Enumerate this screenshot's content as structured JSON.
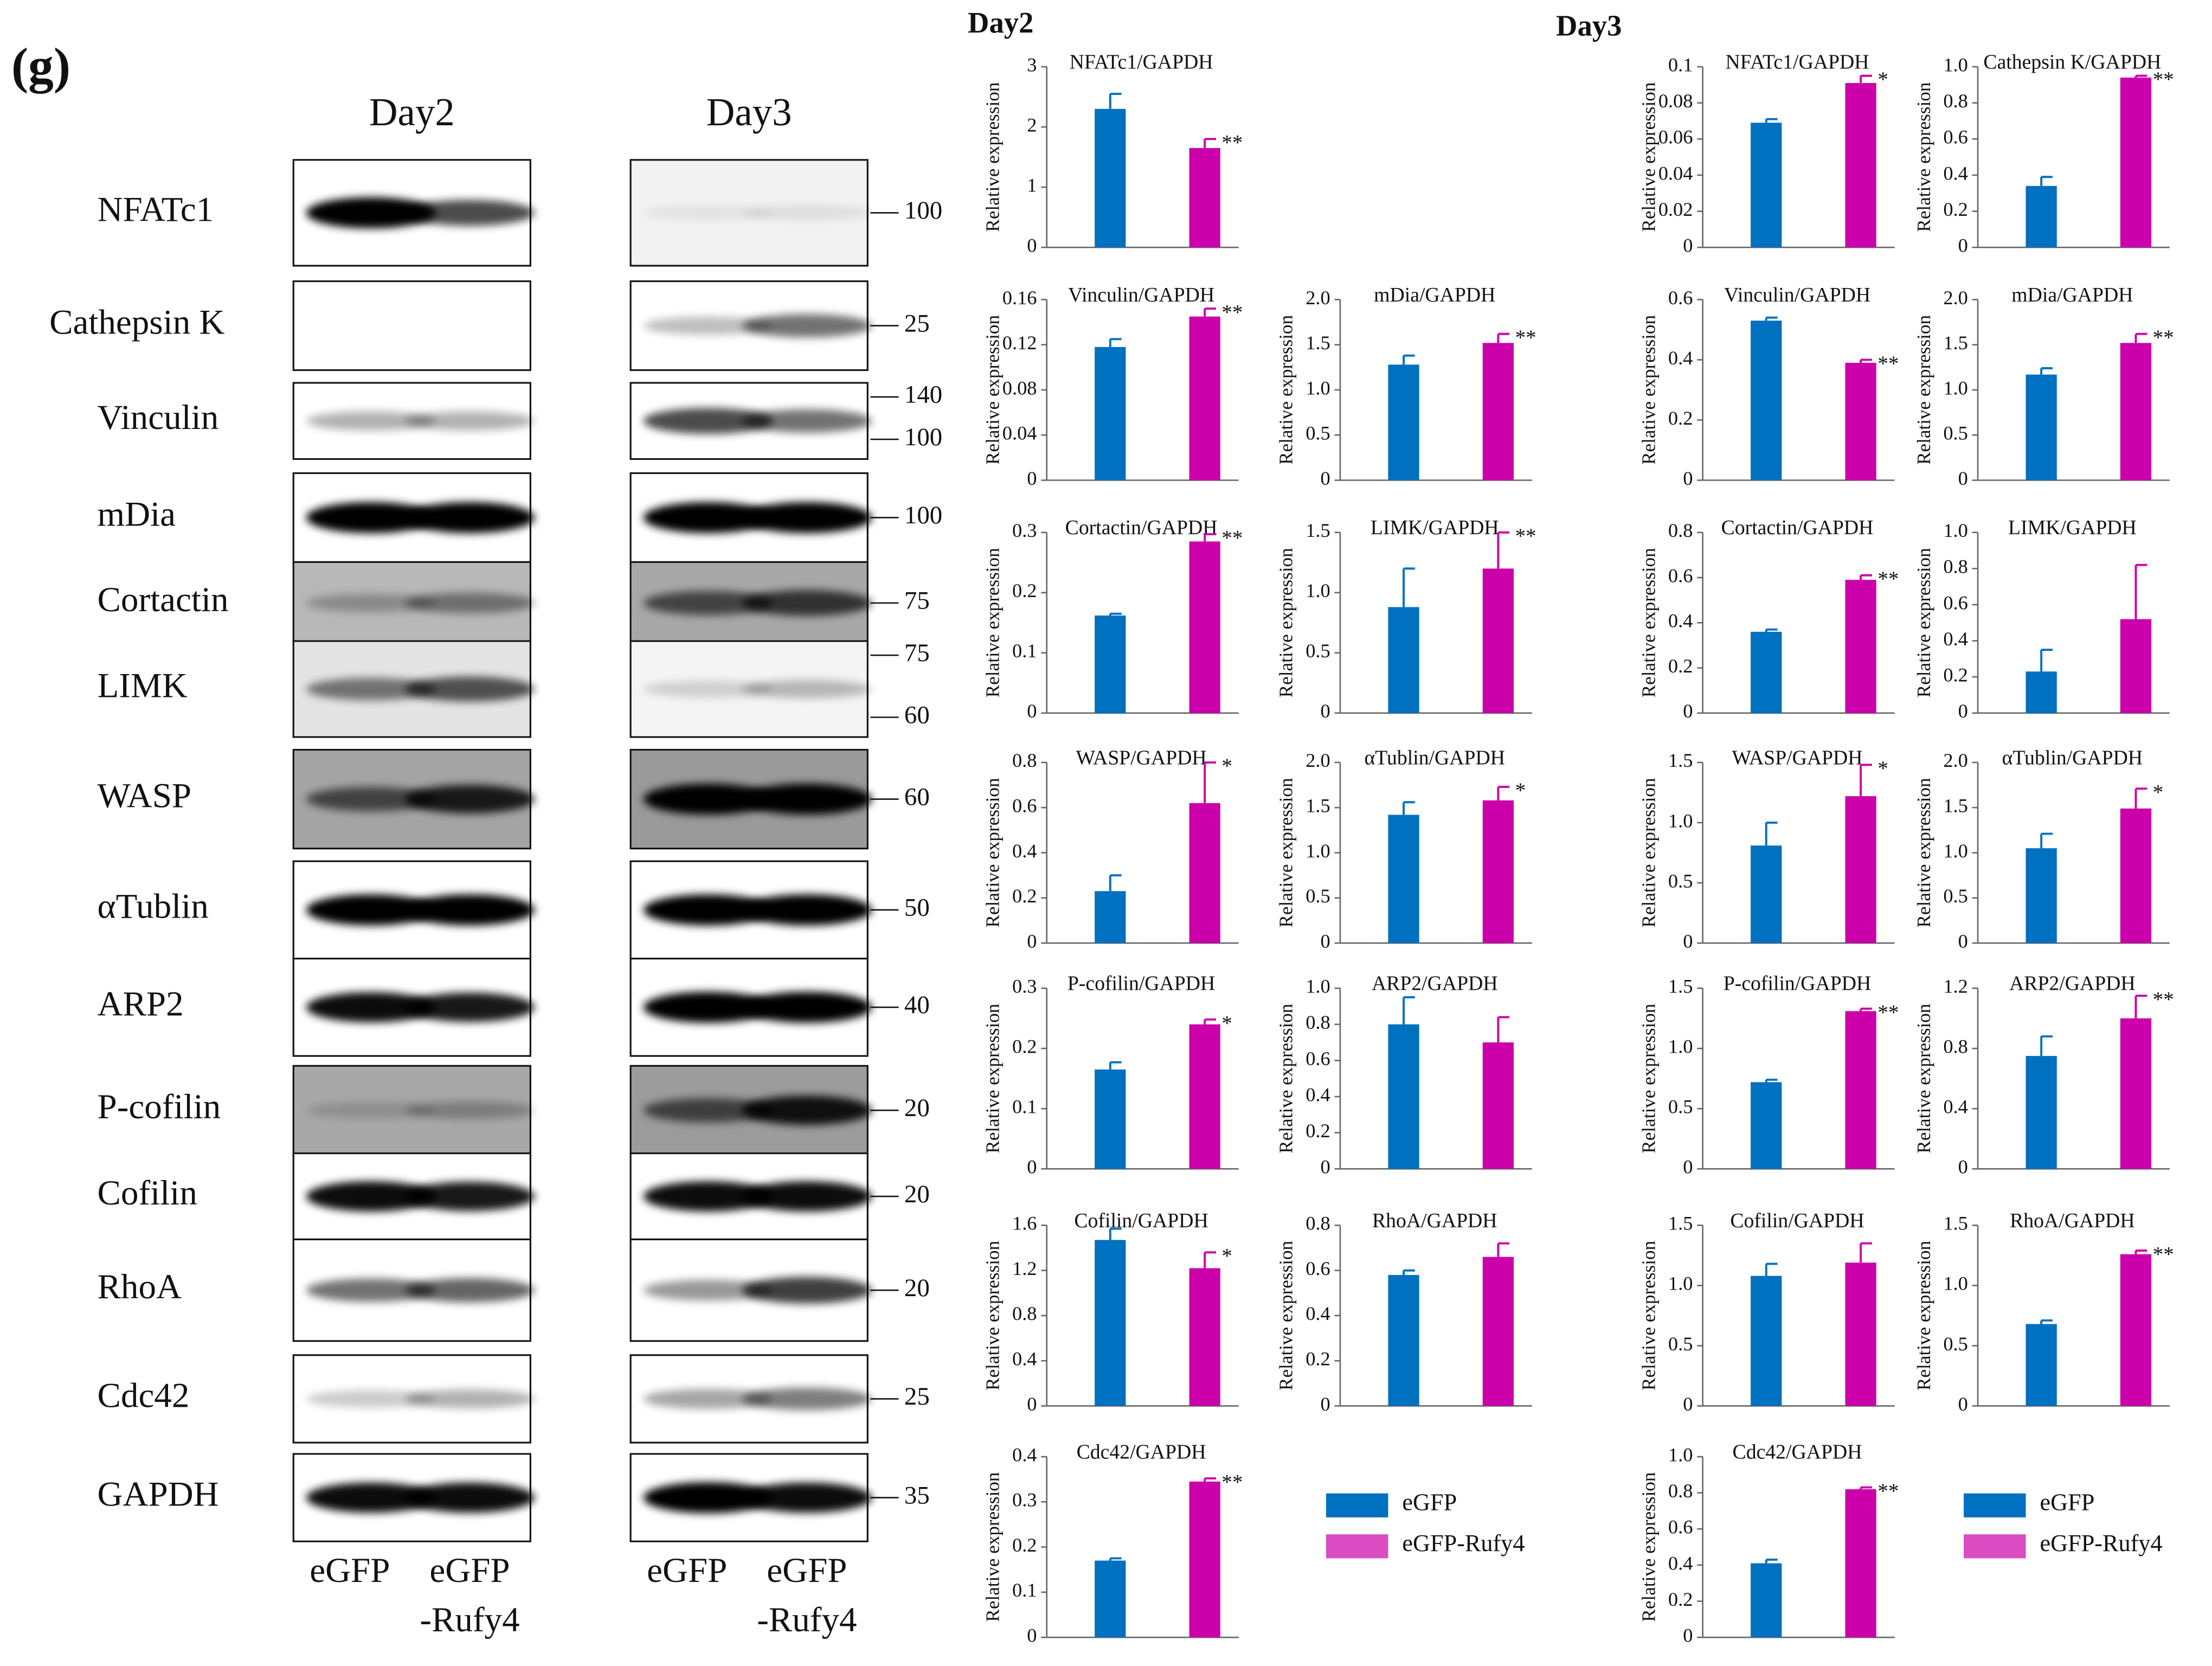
{
  "panel_label": "(g)",
  "blot": {
    "day_labels": [
      "Day2",
      "Day3"
    ],
    "proteins": [
      "NFATc1",
      "Cathepsin K",
      "Vinculin",
      "mDia",
      "Cortactin",
      "LIMK",
      "WASP",
      "αTublin",
      "ARP2",
      "P-cofilin",
      "Cofilin",
      "RhoA",
      "Cdc42",
      "GAPDH"
    ],
    "markers": [
      [
        100
      ],
      [
        25
      ],
      [
        140,
        100
      ],
      [
        100
      ],
      [
        75
      ],
      [
        75,
        60
      ],
      [
        60
      ],
      [
        50
      ],
      [
        40
      ],
      [
        20
      ],
      [
        20
      ],
      [
        20
      ],
      [
        25
      ],
      [
        35
      ]
    ],
    "lanes": [
      [
        "eGFP"
      ],
      [
        "eGFP",
        "-Rufy4"
      ]
    ]
  },
  "chart_group_titles": [
    "Day2",
    "Day3"
  ],
  "chart_data": [
    {
      "type": "bar",
      "title": "NFATc1/GAPDH",
      "y_label": "Relative expression",
      "ylim": [
        0,
        3
      ],
      "yticks": [
        0,
        1,
        2,
        3
      ],
      "series": [
        {
          "name": "eGFP",
          "color": "#0070c0",
          "values": [
            2.3
          ],
          "errors": [
            0.25
          ]
        },
        {
          "name": "eGFP-Rufy4",
          "color": "#cc00aa",
          "values": [
            1.65
          ],
          "errors": [
            0.15
          ],
          "annotations": [
            "**"
          ]
        }
      ]
    },
    {
      "type": "bar",
      "title": "Vinculin/GAPDH",
      "y_label": "Relative expression",
      "ylim": [
        0,
        0.16
      ],
      "yticks": [
        0,
        0.04,
        0.08,
        0.12,
        0.16
      ],
      "series": [
        {
          "name": "eGFP",
          "color": "#0070c0",
          "values": [
            0.118
          ],
          "errors": [
            0.007
          ]
        },
        {
          "name": "eGFP-Rufy4",
          "color": "#cc00aa",
          "values": [
            0.145
          ],
          "errors": [
            0.007
          ],
          "annotations": [
            "**"
          ]
        }
      ]
    },
    {
      "type": "bar",
      "title": "mDia/GAPDH",
      "y_label": "Relative expression",
      "ylim": [
        0,
        2
      ],
      "yticks": [
        0,
        0.5,
        {
          "value": 1,
          "label": "1.0"
        },
        1.5,
        {
          "value": 2,
          "label": "2.0"
        }
      ],
      "series": [
        {
          "name": "eGFP",
          "color": "#0070c0",
          "values": [
            1.28
          ],
          "errors": [
            0.1
          ]
        },
        {
          "name": "eGFP-Rufy4",
          "color": "#cc00aa",
          "values": [
            1.52
          ],
          "errors": [
            0.1
          ],
          "annotations": [
            "**"
          ]
        }
      ]
    },
    {
      "type": "bar",
      "title": "Cortactin/GAPDH",
      "y_label": "Relative expression",
      "ylim": [
        0,
        0.3
      ],
      "yticks": [
        0,
        0.1,
        0.2,
        0.3
      ],
      "series": [
        {
          "name": "eGFP",
          "color": "#0070c0",
          "values": [
            0.162
          ],
          "errors": [
            0.003
          ]
        },
        {
          "name": "eGFP-Rufy4",
          "color": "#cc00aa",
          "values": [
            0.285
          ],
          "errors": [
            0.012
          ],
          "annotations": [
            "**"
          ]
        }
      ]
    },
    {
      "type": "bar",
      "title": "LIMK/GAPDH",
      "y_label": "Relative expression",
      "ylim": [
        0,
        1.5
      ],
      "yticks": [
        0,
        0.5,
        {
          "value": 1,
          "label": "1.0"
        },
        1.5
      ],
      "series": [
        {
          "name": "eGFP",
          "color": "#0070c0",
          "values": [
            0.88
          ],
          "errors": [
            0.32
          ]
        },
        {
          "name": "eGFP-Rufy4",
          "color": "#cc00aa",
          "values": [
            1.2
          ],
          "errors": [
            0.3
          ],
          "annotations": [
            "**"
          ]
        }
      ]
    },
    {
      "type": "bar",
      "title": "WASP/GAPDH",
      "y_label": "Relative expression",
      "ylim": [
        0,
        0.8
      ],
      "yticks": [
        0,
        0.2,
        0.4,
        0.6,
        0.8
      ],
      "series": [
        {
          "name": "eGFP",
          "color": "#0070c0",
          "values": [
            0.23
          ],
          "errors": [
            0.07
          ]
        },
        {
          "name": "eGFP-Rufy4",
          "color": "#cc00aa",
          "values": [
            0.62
          ],
          "errors": [
            0.18
          ],
          "annotations": [
            "*"
          ]
        }
      ]
    },
    {
      "type": "bar",
      "title": "αTublin/GAPDH",
      "y_label": "Relative expression",
      "ylim": [
        0,
        2
      ],
      "yticks": [
        0,
        0.5,
        {
          "value": 1,
          "label": "1.0"
        },
        1.5,
        {
          "value": 2,
          "label": "2.0"
        }
      ],
      "series": [
        {
          "name": "eGFP",
          "color": "#0070c0",
          "values": [
            1.42
          ],
          "errors": [
            0.14
          ]
        },
        {
          "name": "eGFP-Rufy4",
          "color": "#cc00aa",
          "values": [
            1.58
          ],
          "errors": [
            0.15
          ],
          "annotations": [
            "*"
          ]
        }
      ]
    },
    {
      "type": "bar",
      "title": "P-cofilin/GAPDH",
      "y_label": "Relative expression",
      "ylim": [
        0,
        0.3
      ],
      "yticks": [
        0,
        0.1,
        0.2,
        0.3
      ],
      "series": [
        {
          "name": "eGFP",
          "color": "#0070c0",
          "values": [
            0.165
          ],
          "errors": [
            0.012
          ]
        },
        {
          "name": "eGFP-Rufy4",
          "color": "#cc00aa",
          "values": [
            0.24
          ],
          "errors": [
            0.008
          ],
          "annotations": [
            "*"
          ]
        }
      ]
    },
    {
      "type": "bar",
      "title": "ARP2/GAPDH",
      "y_label": "Relative expression",
      "ylim": [
        0,
        1
      ],
      "yticks": [
        0,
        0.2,
        0.4,
        0.6,
        0.8,
        {
          "value": 1,
          "label": "1.0"
        }
      ],
      "series": [
        {
          "name": "eGFP",
          "color": "#0070c0",
          "values": [
            0.8
          ],
          "errors": [
            0.15
          ]
        },
        {
          "name": "eGFP-Rufy4",
          "color": "#cc00aa",
          "values": [
            0.7
          ],
          "errors": [
            0.14
          ]
        }
      ]
    },
    {
      "type": "bar",
      "title": "Cofilin/GAPDH",
      "y_label": "Relative expression",
      "ylim": [
        0,
        1.6
      ],
      "yticks": [
        0,
        0.4,
        0.8,
        1.2,
        1.6
      ],
      "series": [
        {
          "name": "eGFP",
          "color": "#0070c0",
          "values": [
            1.47
          ],
          "errors": [
            0.1
          ]
        },
        {
          "name": "eGFP-Rufy4",
          "color": "#cc00aa",
          "values": [
            1.22
          ],
          "errors": [
            0.14
          ],
          "annotations": [
            "*"
          ]
        }
      ]
    },
    {
      "type": "bar",
      "title": "RhoA/GAPDH",
      "y_label": "Relative expression",
      "ylim": [
        0,
        0.8
      ],
      "yticks": [
        0,
        0.2,
        0.4,
        0.6,
        0.8
      ],
      "series": [
        {
          "name": "eGFP",
          "color": "#0070c0",
          "values": [
            0.58
          ],
          "errors": [
            0.02
          ]
        },
        {
          "name": "eGFP-Rufy4",
          "color": "#cc00aa",
          "values": [
            0.66
          ],
          "errors": [
            0.06
          ]
        }
      ]
    },
    {
      "type": "bar",
      "title": "Cdc42/GAPDH",
      "y_label": "Relative expression",
      "ylim": [
        0,
        0.4
      ],
      "yticks": [
        0,
        0.1,
        0.2,
        0.3,
        0.4
      ],
      "series": [
        {
          "name": "eGFP",
          "color": "#0070c0",
          "values": [
            0.17
          ],
          "errors": [
            0.005
          ]
        },
        {
          "name": "eGFP-Rufy4",
          "color": "#cc00aa",
          "values": [
            0.345
          ],
          "errors": [
            0.007
          ],
          "annotations": [
            "**"
          ]
        }
      ]
    },
    {
      "type": "bar",
      "title": "NFATc1/GAPDH",
      "y_label": "Relative expression",
      "ylim": [
        0,
        0.1
      ],
      "yticks": [
        0,
        0.02,
        0.04,
        0.06,
        0.08,
        0.1
      ],
      "series": [
        {
          "name": "eGFP",
          "color": "#0070c0",
          "values": [
            0.069
          ],
          "errors": [
            0.002
          ]
        },
        {
          "name": "eGFP-Rufy4",
          "color": "#cc00aa",
          "values": [
            0.091
          ],
          "errors": [
            0.004
          ],
          "annotations": [
            "*"
          ]
        }
      ]
    },
    {
      "type": "bar",
      "title": "Cathepsin K/GAPDH",
      "y_label": "Relative expression",
      "ylim": [
        0,
        1
      ],
      "yticks": [
        0,
        0.2,
        0.4,
        0.6,
        0.8,
        {
          "value": 1,
          "label": "1.0"
        }
      ],
      "series": [
        {
          "name": "eGFP",
          "color": "#0070c0",
          "values": [
            0.34
          ],
          "errors": [
            0.05
          ]
        },
        {
          "name": "eGFP-Rufy4",
          "color": "#cc00aa",
          "values": [
            0.94
          ],
          "errors": [
            0.01
          ],
          "annotations": [
            "**"
          ]
        }
      ]
    },
    {
      "type": "bar",
      "title": "Vinculin/GAPDH",
      "y_label": "Relative expression",
      "ylim": [
        0,
        0.6
      ],
      "yticks": [
        0,
        0.2,
        0.4,
        0.6
      ],
      "series": [
        {
          "name": "eGFP",
          "color": "#0070c0",
          "values": [
            0.53
          ],
          "errors": [
            0.01
          ]
        },
        {
          "name": "eGFP-Rufy4",
          "color": "#cc00aa",
          "values": [
            0.39
          ],
          "errors": [
            0.01
          ],
          "annotations": [
            "**"
          ]
        }
      ]
    },
    {
      "type": "bar",
      "title": "mDia/GAPDH",
      "y_label": "Relative expression",
      "ylim": [
        0,
        2
      ],
      "yticks": [
        0,
        0.5,
        {
          "value": 1,
          "label": "1.0"
        },
        1.5,
        {
          "value": 2,
          "label": "2.0"
        }
      ],
      "series": [
        {
          "name": "eGFP",
          "color": "#0070c0",
          "values": [
            1.17
          ],
          "errors": [
            0.07
          ]
        },
        {
          "name": "eGFP-Rufy4",
          "color": "#cc00aa",
          "values": [
            1.52
          ],
          "errors": [
            0.1
          ],
          "annotations": [
            "**"
          ]
        }
      ]
    },
    {
      "type": "bar",
      "title": "Cortactin/GAPDH",
      "y_label": "Relative expression",
      "ylim": [
        0,
        0.8
      ],
      "yticks": [
        0,
        0.2,
        0.4,
        0.6,
        0.8
      ],
      "series": [
        {
          "name": "eGFP",
          "color": "#0070c0",
          "values": [
            0.36
          ],
          "errors": [
            0.01
          ]
        },
        {
          "name": "eGFP-Rufy4",
          "color": "#cc00aa",
          "values": [
            0.59
          ],
          "errors": [
            0.02
          ],
          "annotations": [
            "**"
          ]
        }
      ]
    },
    {
      "type": "bar",
      "title": "LIMK/GAPDH",
      "y_label": "Relative expression",
      "ylim": [
        0,
        1
      ],
      "yticks": [
        0,
        0.2,
        0.4,
        0.6,
        0.8,
        {
          "value": 1,
          "label": "1.0"
        }
      ],
      "series": [
        {
          "name": "eGFP",
          "color": "#0070c0",
          "values": [
            0.23
          ],
          "errors": [
            0.12
          ]
        },
        {
          "name": "eGFP-Rufy4",
          "color": "#cc00aa",
          "values": [
            0.52
          ],
          "errors": [
            0.3
          ]
        }
      ]
    },
    {
      "type": "bar",
      "title": "WASP/GAPDH",
      "y_label": "Relative expression",
      "ylim": [
        0,
        1.5
      ],
      "yticks": [
        0,
        0.5,
        {
          "value": 1,
          "label": "1.0"
        },
        1.5
      ],
      "series": [
        {
          "name": "eGFP",
          "color": "#0070c0",
          "values": [
            0.81
          ],
          "errors": [
            0.19
          ]
        },
        {
          "name": "eGFP-Rufy4",
          "color": "#cc00aa",
          "values": [
            1.22
          ],
          "errors": [
            0.26
          ],
          "annotations": [
            "*"
          ]
        }
      ]
    },
    {
      "type": "bar",
      "title": "αTublin/GAPDH",
      "y_label": "Relative expression",
      "ylim": [
        0,
        2
      ],
      "yticks": [
        0,
        0.5,
        {
          "value": 1,
          "label": "1.0"
        },
        1.5,
        {
          "value": 2,
          "label": "2.0"
        }
      ],
      "series": [
        {
          "name": "eGFP",
          "color": "#0070c0",
          "values": [
            1.05
          ],
          "errors": [
            0.16
          ]
        },
        {
          "name": "eGFP-Rufy4",
          "color": "#cc00aa",
          "values": [
            1.49
          ],
          "errors": [
            0.22
          ],
          "annotations": [
            "*"
          ]
        }
      ]
    },
    {
      "type": "bar",
      "title": "P-cofilin/GAPDH",
      "y_label": "Relative expression",
      "ylim": [
        0,
        1.5
      ],
      "yticks": [
        0,
        0.5,
        {
          "value": 1,
          "label": "1.0"
        },
        1.5
      ],
      "series": [
        {
          "name": "eGFP",
          "color": "#0070c0",
          "values": [
            0.72
          ],
          "errors": [
            0.02
          ]
        },
        {
          "name": "eGFP-Rufy4",
          "color": "#cc00aa",
          "values": [
            1.31
          ],
          "errors": [
            0.02
          ],
          "annotations": [
            "**"
          ]
        }
      ]
    },
    {
      "type": "bar",
      "title": "ARP2/GAPDH",
      "y_label": "Relative expression",
      "ylim": [
        0,
        1.2
      ],
      "yticks": [
        0,
        0.4,
        0.8,
        1.2
      ],
      "series": [
        {
          "name": "eGFP",
          "color": "#0070c0",
          "values": [
            0.75
          ],
          "errors": [
            0.13
          ]
        },
        {
          "name": "eGFP-Rufy4",
          "color": "#cc00aa",
          "values": [
            1.0
          ],
          "errors": [
            0.15
          ],
          "annotations": [
            "**"
          ]
        }
      ]
    },
    {
      "type": "bar",
      "title": "Cofilin/GAPDH",
      "y_label": "Relative expression",
      "ylim": [
        0,
        1.5
      ],
      "yticks": [
        0,
        0.5,
        {
          "value": 1,
          "label": "1.0"
        },
        1.5
      ],
      "series": [
        {
          "name": "eGFP",
          "color": "#0070c0",
          "values": [
            1.08
          ],
          "errors": [
            0.1
          ]
        },
        {
          "name": "eGFP-Rufy4",
          "color": "#cc00aa",
          "values": [
            1.19
          ],
          "errors": [
            0.16
          ]
        }
      ]
    },
    {
      "type": "bar",
      "title": "RhoA/GAPDH",
      "y_label": "Relative expression",
      "ylim": [
        0,
        1.5
      ],
      "yticks": [
        0,
        0.5,
        {
          "value": 1,
          "label": "1.0"
        },
        1.5
      ],
      "series": [
        {
          "name": "eGFP",
          "color": "#0070c0",
          "values": [
            0.68
          ],
          "errors": [
            0.03
          ]
        },
        {
          "name": "eGFP-Rufy4",
          "color": "#cc00aa",
          "values": [
            1.26
          ],
          "errors": [
            0.03
          ],
          "annotations": [
            "**"
          ]
        }
      ]
    },
    {
      "type": "bar",
      "title": "Cdc42/GAPDH",
      "y_label": "Relative expression",
      "ylim": [
        0,
        1
      ],
      "yticks": [
        0,
        0.2,
        0.4,
        0.6,
        0.8,
        {
          "value": 1,
          "label": "1.0"
        }
      ],
      "series": [
        {
          "name": "eGFP",
          "color": "#0070c0",
          "values": [
            0.41
          ],
          "errors": [
            0.02
          ]
        },
        {
          "name": "eGFP-Rufy4",
          "color": "#cc00aa",
          "values": [
            0.82
          ],
          "errors": [
            0.01
          ],
          "annotations": [
            "**"
          ]
        }
      ]
    }
  ]
}
